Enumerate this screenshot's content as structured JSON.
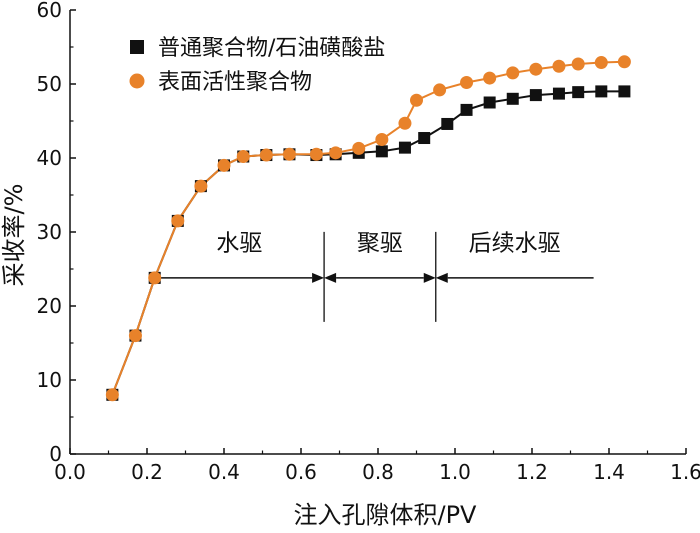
{
  "chart_data": {
    "type": "line",
    "xlabel": "注入孔隙体积/PV",
    "ylabel": "采收率/%",
    "xlim": [
      0.0,
      1.6
    ],
    "ylim": [
      0,
      60
    ],
    "x_ticks": [
      0.0,
      0.2,
      0.4,
      0.6,
      0.8,
      1.0,
      1.2,
      1.4,
      1.6
    ],
    "x_tick_labels": [
      "0.0",
      "0.2",
      "0.4",
      "0.6",
      "0.8",
      "1.0",
      "1.2",
      "1.4",
      "1.6"
    ],
    "y_ticks": [
      0,
      10,
      20,
      30,
      40,
      50,
      60
    ],
    "y_tick_labels": [
      "0",
      "10",
      "20",
      "30",
      "40",
      "50",
      "60"
    ],
    "grid": false,
    "legend_position": "top-center",
    "series": [
      {
        "name": "普通聚合物/石油磺酸盐",
        "marker": "square",
        "color": "#111111",
        "points": [
          [
            0.11,
            8.0
          ],
          [
            0.17,
            16.0
          ],
          [
            0.22,
            23.8
          ],
          [
            0.28,
            31.5
          ],
          [
            0.34,
            36.2
          ],
          [
            0.4,
            39.0
          ],
          [
            0.45,
            40.2
          ],
          [
            0.51,
            40.4
          ],
          [
            0.57,
            40.5
          ],
          [
            0.64,
            40.4
          ],
          [
            0.69,
            40.5
          ],
          [
            0.75,
            40.7
          ],
          [
            0.81,
            40.9
          ],
          [
            0.87,
            41.4
          ],
          [
            0.92,
            42.7
          ],
          [
            0.98,
            44.6
          ],
          [
            1.03,
            46.5
          ],
          [
            1.09,
            47.5
          ],
          [
            1.15,
            48.0
          ],
          [
            1.21,
            48.5
          ],
          [
            1.27,
            48.7
          ],
          [
            1.32,
            48.9
          ],
          [
            1.38,
            49.0
          ],
          [
            1.44,
            49.0
          ]
        ]
      },
      {
        "name": "表面活性聚合物",
        "marker": "circle",
        "color": "#e8822a",
        "points": [
          [
            0.11,
            8.0
          ],
          [
            0.17,
            16.0
          ],
          [
            0.22,
            23.8
          ],
          [
            0.28,
            31.5
          ],
          [
            0.34,
            36.2
          ],
          [
            0.4,
            39.0
          ],
          [
            0.45,
            40.2
          ],
          [
            0.51,
            40.4
          ],
          [
            0.57,
            40.5
          ],
          [
            0.64,
            40.5
          ],
          [
            0.69,
            40.7
          ],
          [
            0.75,
            41.3
          ],
          [
            0.81,
            42.5
          ],
          [
            0.87,
            44.7
          ],
          [
            0.9,
            47.8
          ],
          [
            0.96,
            49.2
          ],
          [
            1.03,
            50.2
          ],
          [
            1.09,
            50.8
          ],
          [
            1.15,
            51.5
          ],
          [
            1.21,
            52.0
          ],
          [
            1.27,
            52.4
          ],
          [
            1.32,
            52.7
          ],
          [
            1.38,
            52.9
          ],
          [
            1.44,
            53.0
          ]
        ]
      }
    ],
    "phases": [
      {
        "label": "水驱",
        "from": 0.22,
        "to": 0.66
      },
      {
        "label": "聚驱",
        "from": 0.66,
        "to": 0.95
      },
      {
        "label": "后续水驱",
        "from": 0.95,
        "to": 1.36
      }
    ],
    "phase_arrow_y": 23.8,
    "phase_label_y": 27.5,
    "phase_dividers": [
      0.66,
      0.95
    ]
  }
}
